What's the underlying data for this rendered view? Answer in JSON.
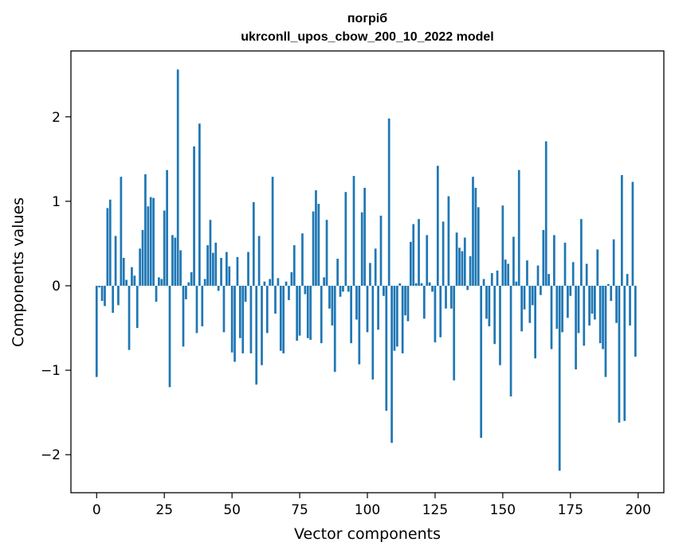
{
  "chart_data": {
    "type": "bar",
    "title": "погріб",
    "subtitle": "ukrconll_upos_cbow_200_10_2022 model",
    "xlabel": "Vector components",
    "ylabel": "Components values",
    "xlim": [
      -9.5,
      209.5
    ],
    "ylim": [
      -2.45,
      2.78
    ],
    "xticks": [
      0,
      25,
      50,
      75,
      100,
      125,
      150,
      175,
      200
    ],
    "yticks": [
      -2,
      -1,
      0,
      1,
      2
    ],
    "ytick_labels": [
      "−2",
      "−1",
      "0",
      "1",
      "2"
    ],
    "grid": false,
    "bar_color": "#1f77b4",
    "x": [
      0,
      1,
      2,
      3,
      4,
      5,
      6,
      7,
      8,
      9,
      10,
      11,
      12,
      13,
      14,
      15,
      16,
      17,
      18,
      19,
      20,
      21,
      22,
      23,
      24,
      25,
      26,
      27,
      28,
      29,
      30,
      31,
      32,
      33,
      34,
      35,
      36,
      37,
      38,
      39,
      40,
      41,
      42,
      43,
      44,
      45,
      46,
      47,
      48,
      49,
      50,
      51,
      52,
      53,
      54,
      55,
      56,
      57,
      58,
      59,
      60,
      61,
      62,
      63,
      64,
      65,
      66,
      67,
      68,
      69,
      70,
      71,
      72,
      73,
      74,
      75,
      76,
      77,
      78,
      79,
      80,
      81,
      82,
      83,
      84,
      85,
      86,
      87,
      88,
      89,
      90,
      91,
      92,
      93,
      94,
      95,
      96,
      97,
      98,
      99,
      100,
      101,
      102,
      103,
      104,
      105,
      106,
      107,
      108,
      109,
      110,
      111,
      112,
      113,
      114,
      115,
      116,
      117,
      118,
      119,
      120,
      121,
      122,
      123,
      124,
      125,
      126,
      127,
      128,
      129,
      130,
      131,
      132,
      133,
      134,
      135,
      136,
      137,
      138,
      139,
      140,
      141,
      142,
      143,
      144,
      145,
      146,
      147,
      148,
      149,
      150,
      151,
      152,
      153,
      154,
      155,
      156,
      157,
      158,
      159,
      160,
      161,
      162,
      163,
      164,
      165,
      166,
      167,
      168,
      169,
      170,
      171,
      172,
      173,
      174,
      175,
      176,
      177,
      178,
      179,
      180,
      181,
      182,
      183,
      184,
      185,
      186,
      187,
      188,
      189,
      190,
      191,
      192,
      193,
      194,
      195,
      196,
      197,
      198,
      199
    ],
    "values": [
      -1.08,
      -0.02,
      -0.18,
      -0.24,
      0.92,
      1.02,
      -0.32,
      0.59,
      -0.23,
      1.29,
      0.33,
      0.07,
      -0.76,
      0.22,
      0.12,
      -0.5,
      0.44,
      0.66,
      1.32,
      0.94,
      1.05,
      1.04,
      -0.19,
      0.1,
      0.08,
      0.89,
      1.37,
      -1.2,
      0.6,
      0.57,
      2.56,
      0.42,
      -0.72,
      -0.16,
      0.04,
      0.16,
      1.65,
      -0.56,
      1.92,
      -0.48,
      0.08,
      0.48,
      0.78,
      0.39,
      0.51,
      -0.06,
      0.33,
      -0.55,
      0.4,
      0.23,
      -0.79,
      -0.9,
      0.34,
      -0.62,
      -0.8,
      -0.19,
      0.4,
      -0.8,
      0.99,
      -1.17,
      0.59,
      -0.94,
      0.05,
      -0.56,
      0.08,
      1.29,
      -0.33,
      0.09,
      -0.77,
      -0.8,
      0.05,
      -0.17,
      0.16,
      0.48,
      -0.65,
      -0.59,
      0.62,
      -0.1,
      -0.62,
      -0.64,
      0.88,
      1.13,
      0.97,
      -0.68,
      0.1,
      0.78,
      -0.27,
      -0.47,
      -1.02,
      0.32,
      -0.13,
      -0.07,
      1.11,
      -0.07,
      -0.68,
      1.3,
      -0.4,
      -0.93,
      0.87,
      1.16,
      -0.55,
      0.27,
      -1.11,
      0.44,
      -0.52,
      0.83,
      -0.12,
      -1.48,
      1.98,
      -1.86,
      -0.77,
      -0.72,
      0.03,
      -0.8,
      -0.35,
      -0.42,
      0.52,
      0.73,
      0.03,
      0.79,
      0.03,
      -0.39,
      0.6,
      0.04,
      -0.07,
      -0.67,
      1.42,
      -0.61,
      0.76,
      -0.27,
      1.06,
      -0.27,
      -1.12,
      0.63,
      0.45,
      0.41,
      0.57,
      -0.05,
      0.35,
      1.29,
      1.16,
      0.93,
      -1.8,
      0.08,
      -0.39,
      -0.48,
      0.15,
      -0.69,
      0.18,
      -0.94,
      0.95,
      0.31,
      0.26,
      -1.31,
      0.58,
      0.05,
      1.37,
      -0.54,
      -0.28,
      0.3,
      -0.44,
      -0.23,
      -0.86,
      0.24,
      -0.11,
      0.66,
      1.71,
      0.14,
      -0.75,
      0.6,
      -0.51,
      -2.19,
      -0.55,
      0.51,
      -0.38,
      -0.12,
      0.28,
      -0.99,
      -0.56,
      0.79,
      -0.71,
      0.26,
      -0.47,
      -0.33,
      -0.4,
      0.43,
      -0.68,
      -0.75,
      -1.08,
      0.02,
      -0.18,
      0.55,
      -0.44,
      -1.62,
      1.31,
      -1.6,
      0.14,
      -0.47,
      1.23,
      -0.84
    ]
  }
}
